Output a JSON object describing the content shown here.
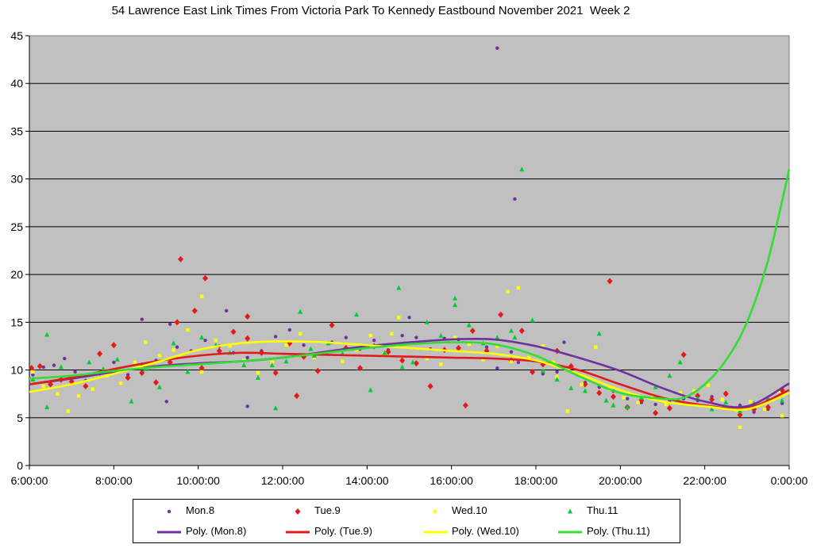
{
  "chart_data": {
    "type": "scatter",
    "title": "54 Lawrence East Link Times From Victoria Park To Kennedy Eastbound November 2021  Week 2",
    "xlabel": "",
    "ylabel": "",
    "ylim": [
      0,
      45
    ],
    "yticks": [
      0,
      5,
      10,
      15,
      20,
      25,
      30,
      35,
      40,
      45
    ],
    "xlim": [
      "6:00:00",
      "0:00:00"
    ],
    "xticks": [
      "6:00:00",
      "8:00:00",
      "10:00:00",
      "12:00:00",
      "14:00:00",
      "16:00:00",
      "18:00:00",
      "20:00:00",
      "22:00:00",
      "0:00:00"
    ],
    "plot_background": "#c0c0c0",
    "grid": "horizontal",
    "legend_position": "bottom",
    "series": [
      {
        "name": "Mon.8",
        "marker": "circle",
        "color": "#7030a0",
        "x": [
          "6:05",
          "6:20",
          "6:35",
          "6:50",
          "7:05",
          "7:20",
          "7:40",
          "8:00",
          "8:20",
          "8:40",
          "9:00",
          "9:15",
          "9:30",
          "9:50",
          "10:10",
          "10:30",
          "10:50",
          "11:10",
          "11:30",
          "11:50",
          "12:10",
          "12:30",
          "12:50",
          "13:10",
          "13:30",
          "13:50",
          "14:10",
          "14:30",
          "14:50",
          "15:10",
          "15:30",
          "15:50",
          "16:10",
          "16:30",
          "16:50",
          "17:05",
          "17:25",
          "17:35",
          "17:50",
          "18:10",
          "18:30",
          "18:50",
          "19:10",
          "19:30",
          "19:50",
          "20:10",
          "20:30",
          "20:50",
          "21:10",
          "21:30",
          "21:50",
          "22:10",
          "22:30",
          "22:50",
          "23:10",
          "23:30",
          "23:50",
          "8:40",
          "9:20",
          "10:40",
          "11:10",
          "17:05",
          "17:30",
          "15:00",
          "18:40"
        ],
        "y": [
          9.5,
          10.3,
          10.5,
          11.2,
          9.8,
          8.9,
          9.6,
          10.8,
          9.5,
          10.6,
          11.0,
          6.7,
          12.4,
          12.0,
          13.1,
          12.5,
          11.8,
          11.3,
          12.0,
          13.5,
          14.2,
          12.6,
          11.7,
          12.9,
          13.4,
          12.2,
          13.1,
          12.1,
          13.6,
          13.4,
          12.2,
          13.3,
          13.2,
          14.1,
          12.4,
          10.2,
          11.9,
          10.8,
          11.2,
          9.6,
          9.8,
          10.3,
          8.7,
          8.2,
          7.8,
          7.0,
          6.6,
          6.4,
          6.7,
          7.0,
          6.8,
          7.2,
          7.6,
          6.3,
          5.6,
          5.9,
          6.5,
          15.3,
          14.8,
          16.2,
          6.2,
          43.7,
          27.9,
          15.5,
          12.9
        ]
      },
      {
        "name": "Tue.9",
        "marker": "diamond",
        "color": "#e31a1a",
        "x": [
          "6:03",
          "6:15",
          "6:30",
          "6:45",
          "7:00",
          "7:20",
          "7:40",
          "8:00",
          "8:20",
          "8:40",
          "9:00",
          "9:20",
          "9:35",
          "9:55",
          "10:10",
          "10:30",
          "10:50",
          "11:10",
          "11:30",
          "11:50",
          "12:10",
          "12:30",
          "12:50",
          "13:10",
          "13:30",
          "13:50",
          "14:10",
          "14:30",
          "14:50",
          "15:10",
          "15:30",
          "15:50",
          "16:10",
          "16:30",
          "16:50",
          "17:10",
          "17:25",
          "17:40",
          "17:55",
          "18:10",
          "18:30",
          "18:50",
          "19:10",
          "19:30",
          "19:50",
          "20:10",
          "20:30",
          "20:50",
          "21:10",
          "21:30",
          "21:50",
          "22:10",
          "22:30",
          "22:50",
          "23:10",
          "23:30",
          "23:50",
          "9:30",
          "10:05",
          "19:45",
          "16:20",
          "11:10",
          "12:20"
        ],
        "y": [
          10.2,
          10.4,
          8.5,
          9.0,
          8.8,
          8.3,
          11.7,
          12.6,
          9.2,
          9.7,
          8.7,
          10.8,
          21.6,
          16.2,
          19.6,
          12.0,
          14.0,
          15.6,
          11.8,
          9.7,
          12.8,
          11.4,
          9.9,
          14.7,
          12.3,
          10.2,
          12.5,
          11.9,
          11.0,
          10.7,
          8.3,
          12.1,
          12.3,
          14.1,
          12.0,
          15.8,
          11.0,
          14.1,
          9.8,
          10.6,
          12.0,
          10.4,
          8.5,
          7.6,
          7.2,
          6.1,
          6.8,
          5.5,
          6.0,
          11.6,
          7.3,
          6.9,
          7.5,
          5.3,
          5.9,
          6.1,
          7.9,
          15.0,
          10.2,
          19.3,
          6.3,
          13.3,
          7.3
        ]
      },
      {
        "name": "Wed.10",
        "marker": "square",
        "color": "#ffff00",
        "x": [
          "6:05",
          "6:20",
          "6:40",
          "6:55",
          "7:10",
          "7:30",
          "7:50",
          "8:10",
          "8:30",
          "8:45",
          "9:05",
          "9:25",
          "9:45",
          "10:05",
          "10:25",
          "10:45",
          "11:05",
          "11:25",
          "11:45",
          "12:05",
          "12:25",
          "12:45",
          "13:05",
          "13:25",
          "13:45",
          "14:05",
          "14:25",
          "14:45",
          "15:05",
          "15:25",
          "15:45",
          "16:05",
          "16:25",
          "16:45",
          "17:05",
          "17:20",
          "17:35",
          "17:50",
          "18:10",
          "18:25",
          "18:45",
          "19:05",
          "19:25",
          "19:45",
          "20:05",
          "20:25",
          "20:45",
          "21:05",
          "21:25",
          "21:45",
          "22:05",
          "22:25",
          "22:45",
          "23:05",
          "23:25",
          "23:45",
          "10:05",
          "14:35",
          "17:25",
          "18:30",
          "22:50",
          "23:50"
        ],
        "y": [
          9.8,
          8.3,
          7.5,
          5.7,
          7.3,
          8.0,
          9.4,
          8.6,
          10.8,
          12.9,
          11.5,
          12.1,
          14.2,
          17.7,
          13.1,
          12.5,
          11.0,
          9.7,
          10.8,
          12.6,
          13.8,
          11.3,
          12.8,
          10.9,
          12.1,
          13.6,
          11.7,
          15.5,
          12.8,
          11.2,
          10.6,
          13.4,
          12.7,
          11.1,
          12.5,
          18.2,
          18.6,
          11.3,
          12.5,
          10.8,
          5.7,
          8.5,
          12.4,
          8.0,
          7.1,
          6.6,
          7.3,
          6.4,
          7.6,
          7.8,
          8.4,
          6.9,
          5.8,
          6.7,
          5.9,
          7.8,
          9.8,
          13.8,
          10.9,
          9.3,
          4.0,
          5.2
        ]
      },
      {
        "name": "Thu.11",
        "marker": "triangle",
        "color": "#00cc33",
        "x": [
          "6:05",
          "6:25",
          "6:45",
          "7:05",
          "7:25",
          "7:45",
          "8:05",
          "8:25",
          "8:45",
          "9:05",
          "9:25",
          "9:45",
          "10:05",
          "10:25",
          "10:45",
          "11:05",
          "11:25",
          "11:45",
          "12:05",
          "12:25",
          "12:45",
          "13:05",
          "13:25",
          "13:45",
          "14:05",
          "14:25",
          "14:45",
          "15:05",
          "15:25",
          "15:45",
          "16:05",
          "16:25",
          "16:45",
          "17:05",
          "17:25",
          "17:40",
          "17:55",
          "18:10",
          "18:30",
          "18:50",
          "19:10",
          "19:30",
          "19:50",
          "20:10",
          "20:30",
          "20:50",
          "21:10",
          "21:30",
          "21:50",
          "22:10",
          "22:30",
          "22:50",
          "23:10",
          "23:30",
          "23:50",
          "6:25",
          "11:50",
          "12:40",
          "14:50",
          "16:05",
          "17:30",
          "19:40",
          "21:25"
        ],
        "y": [
          9.0,
          13.7,
          10.3,
          9.3,
          10.8,
          10.1,
          11.1,
          6.7,
          10.1,
          8.2,
          12.8,
          9.8,
          13.4,
          12.6,
          11.8,
          10.5,
          9.2,
          10.5,
          10.9,
          16.1,
          11.5,
          12.8,
          11.7,
          15.8,
          7.9,
          11.8,
          18.6,
          10.8,
          15.0,
          13.6,
          16.8,
          14.7,
          12.8,
          13.4,
          14.1,
          31.0,
          15.2,
          9.9,
          9.0,
          8.1,
          7.8,
          13.8,
          6.3,
          6.1,
          7.1,
          8.2,
          9.4,
          6.5,
          7.0,
          5.9,
          6.6,
          5.7,
          6.5,
          7.0,
          6.8,
          6.1,
          6.0,
          12.2,
          10.3,
          17.5,
          13.4,
          6.8,
          10.8
        ]
      }
    ],
    "trendlines": [
      {
        "name": "Poly. (Mon.8)",
        "color": "#7030a0",
        "x": [
          "6:00",
          "7:00",
          "8:00",
          "9:00",
          "10:00",
          "11:00",
          "12:00",
          "13:00",
          "14:00",
          "15:00",
          "16:00",
          "17:00",
          "18:00",
          "19:00",
          "20:00",
          "21:00",
          "22:00",
          "23:00",
          "0:00"
        ],
        "y": [
          8.5,
          9.1,
          9.8,
          10.4,
          10.7,
          10.9,
          11.3,
          11.9,
          12.5,
          12.9,
          13.2,
          13.2,
          12.5,
          11.3,
          9.9,
          8.1,
          6.7,
          6.2,
          8.6
        ]
      },
      {
        "name": "Poly. (Tue.9)",
        "color": "#e31a1a",
        "x": [
          "6:00",
          "7:00",
          "8:00",
          "9:00",
          "10:00",
          "11:00",
          "12:00",
          "13:00",
          "14:00",
          "15:00",
          "16:00",
          "17:00",
          "18:00",
          "19:00",
          "20:00",
          "21:00",
          "22:00",
          "23:00",
          "0:00"
        ],
        "y": [
          8.5,
          9.2,
          10.1,
          10.9,
          11.5,
          11.8,
          11.7,
          11.6,
          11.5,
          11.4,
          11.3,
          11.2,
          10.9,
          10.0,
          8.5,
          7.1,
          6.3,
          6.0,
          7.9
        ]
      },
      {
        "name": "Poly. (Wed.10)",
        "color": "#ffff00",
        "x": [
          "6:00",
          "7:00",
          "8:00",
          "9:00",
          "10:00",
          "11:00",
          "12:00",
          "13:00",
          "14:00",
          "15:00",
          "16:00",
          "17:00",
          "18:00",
          "19:00",
          "20:00",
          "21:00",
          "22:00",
          "23:00",
          "0:00"
        ],
        "y": [
          7.7,
          8.5,
          9.6,
          10.8,
          12.1,
          12.8,
          13.0,
          12.9,
          12.6,
          12.3,
          12.0,
          11.7,
          11.0,
          9.6,
          7.9,
          6.7,
          6.2,
          5.9,
          7.6
        ]
      },
      {
        "name": "Poly. (Thu.11)",
        "color": "#33dd33",
        "x": [
          "6:00",
          "7:00",
          "8:00",
          "9:00",
          "10:00",
          "11:00",
          "12:00",
          "13:00",
          "14:00",
          "15:00",
          "16:00",
          "17:00",
          "18:00",
          "19:00",
          "20:00",
          "21:00",
          "21:30",
          "22:00",
          "22:30",
          "23:00",
          "23:30",
          "0:00"
        ],
        "y": [
          9.1,
          9.4,
          9.9,
          10.3,
          10.6,
          10.9,
          11.3,
          11.8,
          12.3,
          12.7,
          12.9,
          12.7,
          11.5,
          9.4,
          7.6,
          7.0,
          7.1,
          8.5,
          11.0,
          15.0,
          21.5,
          31.0
        ]
      }
    ]
  },
  "legend": {
    "items": [
      {
        "label": "Mon.8",
        "kind": "marker",
        "marker": "circle",
        "color": "#7030a0"
      },
      {
        "label": "Tue.9",
        "kind": "marker",
        "marker": "diamond",
        "color": "#e31a1a"
      },
      {
        "label": "Wed.10",
        "kind": "marker",
        "marker": "square",
        "color": "#ffff00"
      },
      {
        "label": "Thu.11",
        "kind": "marker",
        "marker": "triangle",
        "color": "#00cc33"
      },
      {
        "label": "Poly. (Mon.8)",
        "kind": "line",
        "color": "#7030a0"
      },
      {
        "label": "Poly. (Tue.9)",
        "kind": "line",
        "color": "#e31a1a"
      },
      {
        "label": "Poly. (Wed.10)",
        "kind": "line",
        "color": "#ffff00"
      },
      {
        "label": "Poly. (Thu.11)",
        "kind": "line",
        "color": "#33dd33"
      }
    ]
  }
}
